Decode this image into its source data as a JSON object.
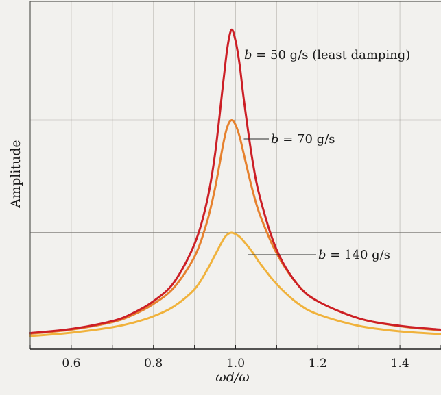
{
  "chart_data": {
    "type": "line",
    "title": "",
    "xlabel": "ωd/ω",
    "ylabel": "Amplitude",
    "xlim": [
      0.5,
      1.5
    ],
    "ylim": [
      0,
      1.0
    ],
    "x_ticks": [
      {
        "value": 0.6,
        "label": "0.6"
      },
      {
        "value": 0.8,
        "label": "0.8"
      },
      {
        "value": 1.0,
        "label": "1.0"
      },
      {
        "value": 1.2,
        "label": "1.2"
      },
      {
        "value": 1.4,
        "label": "1.4"
      }
    ],
    "grid": true,
    "colors": {
      "b50": "#cc1f26",
      "b70": "#e6812e",
      "b140": "#f0b23c",
      "grid": "#c9c7c2",
      "hline": "#6f6d69",
      "frame": "#5a5956",
      "background": "#f2f1ee"
    },
    "series": [
      {
        "id": "b50",
        "label_var": "b",
        "label_value": "= 50 g/s (least damping)",
        "peak": 0.923,
        "x": [
          0.5,
          0.6,
          0.7,
          0.75,
          0.8,
          0.85,
          0.9,
          0.93,
          0.95,
          0.97,
          0.98,
          0.99,
          1.0,
          1.01,
          1.02,
          1.04,
          1.06,
          1.1,
          1.15,
          1.2,
          1.3,
          1.4,
          1.5
        ],
        "y": [
          0.037,
          0.049,
          0.072,
          0.095,
          0.13,
          0.185,
          0.297,
          0.42,
          0.56,
          0.77,
          0.87,
          0.923,
          0.89,
          0.82,
          0.72,
          0.55,
          0.43,
          0.28,
          0.18,
          0.13,
          0.08,
          0.058,
          0.047
        ]
      },
      {
        "id": "b70",
        "label_var": "b",
        "label_value": "= 70 g/s",
        "peak": 0.659,
        "x": [
          0.5,
          0.6,
          0.7,
          0.75,
          0.8,
          0.85,
          0.9,
          0.93,
          0.95,
          0.97,
          0.98,
          0.99,
          1.0,
          1.01,
          1.02,
          1.04,
          1.06,
          1.1,
          1.15,
          1.2,
          1.3,
          1.4,
          1.5
        ],
        "y": [
          0.035,
          0.047,
          0.069,
          0.09,
          0.122,
          0.17,
          0.26,
          0.36,
          0.46,
          0.59,
          0.64,
          0.659,
          0.645,
          0.61,
          0.56,
          0.46,
          0.38,
          0.27,
          0.18,
          0.13,
          0.08,
          0.057,
          0.045
        ]
      },
      {
        "id": "b140",
        "label_var": "b",
        "label_value": "= 140 g/s",
        "peak": 0.33,
        "x": [
          0.5,
          0.6,
          0.7,
          0.75,
          0.8,
          0.85,
          0.9,
          0.93,
          0.95,
          0.97,
          0.98,
          0.99,
          1.0,
          1.01,
          1.02,
          1.04,
          1.06,
          1.1,
          1.15,
          1.2,
          1.3,
          1.4,
          1.5
        ],
        "y": [
          0.028,
          0.038,
          0.054,
          0.067,
          0.086,
          0.115,
          0.165,
          0.22,
          0.265,
          0.31,
          0.325,
          0.33,
          0.326,
          0.318,
          0.305,
          0.275,
          0.24,
          0.18,
          0.125,
          0.092,
          0.058,
          0.042,
          0.034
        ]
      }
    ]
  }
}
